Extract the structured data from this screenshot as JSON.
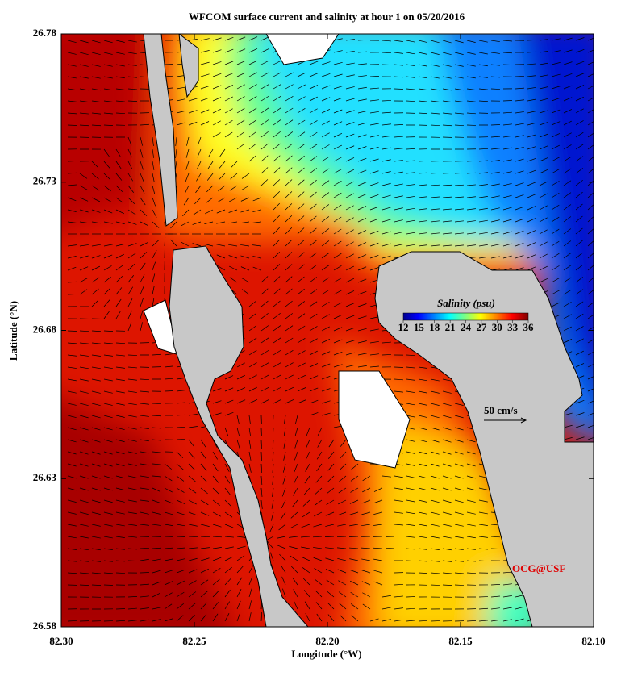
{
  "chart_data": {
    "type": "map",
    "title": "WFCOM surface current and salinity at hour 1 on 05/20/2016",
    "xlabel": "Longitude (°W)",
    "ylabel": "Latitude (°N)",
    "xlim": [
      82.3,
      82.1
    ],
    "xticks": [
      {
        "value": 82.3,
        "label": "82.30"
      },
      82.25,
      {
        "value": 82.2,
        "label": "82.20"
      },
      82.15,
      {
        "value": 82.1,
        "label": "82.10"
      }
    ],
    "ylim": [
      26.58,
      26.78
    ],
    "yticks": [
      26.58,
      26.63,
      26.68,
      26.73,
      26.78
    ],
    "colorbar": {
      "title": "Salinity (psu)",
      "lim": [
        12,
        36
      ],
      "ticks": [
        12,
        15,
        18,
        21,
        24,
        27,
        30,
        33,
        36
      ]
    },
    "annotations": [
      "50 cm/s",
      "OCG@USF"
    ]
  }
}
